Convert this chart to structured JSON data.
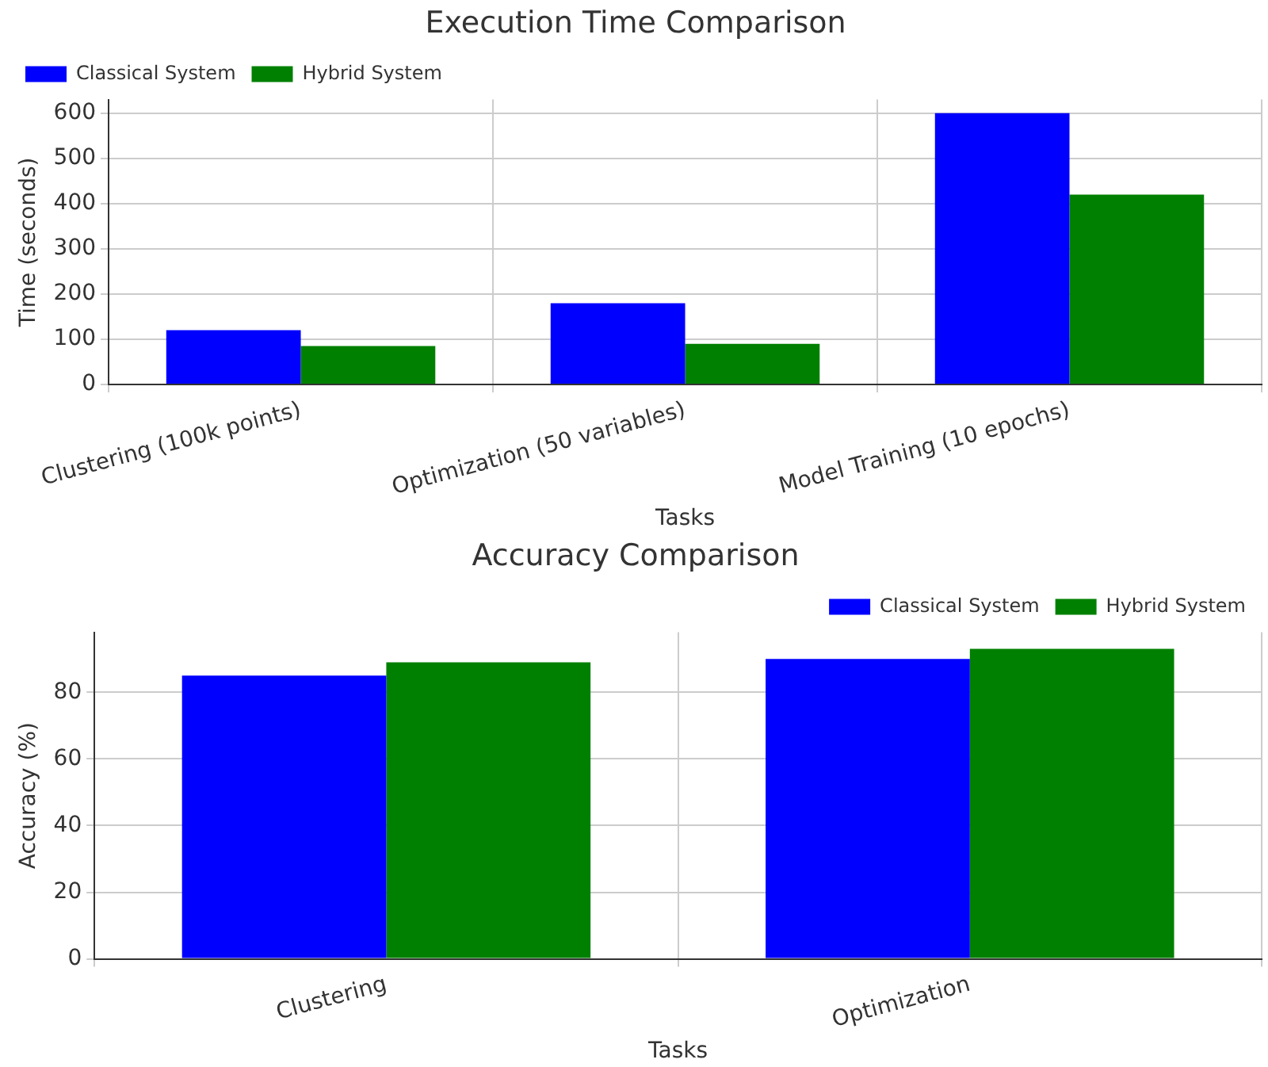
{
  "chart_data": [
    {
      "type": "bar",
      "title": "Execution Time Comparison",
      "xlabel": "Tasks",
      "ylabel": "Time (seconds)",
      "categories": [
        "Clustering (100k points)",
        "Optimization (50 variables)",
        "Model Training (10 epochs)"
      ],
      "series": [
        {
          "name": "Classical System",
          "color": "#0000ff",
          "values": [
            120,
            180,
            600
          ]
        },
        {
          "name": "Hybrid System",
          "color": "#008000",
          "values": [
            85,
            90,
            420
          ]
        }
      ],
      "ylim": [
        0,
        630
      ],
      "yticks": [
        0,
        100,
        200,
        300,
        400,
        500,
        600
      ],
      "grid": true,
      "legend": "top left"
    },
    {
      "type": "bar",
      "title": "Accuracy Comparison",
      "xlabel": "Tasks",
      "ylabel": "Accuracy (%)",
      "categories": [
        "Clustering",
        "Optimization"
      ],
      "series": [
        {
          "name": "Classical System",
          "color": "#0000ff",
          "values": [
            85,
            90
          ]
        },
        {
          "name": "Hybrid System",
          "color": "#008000",
          "values": [
            89,
            93
          ]
        }
      ],
      "ylim": [
        0,
        98
      ],
      "yticks": [
        0,
        20,
        40,
        60,
        80
      ],
      "grid": true,
      "legend": "top right"
    }
  ]
}
